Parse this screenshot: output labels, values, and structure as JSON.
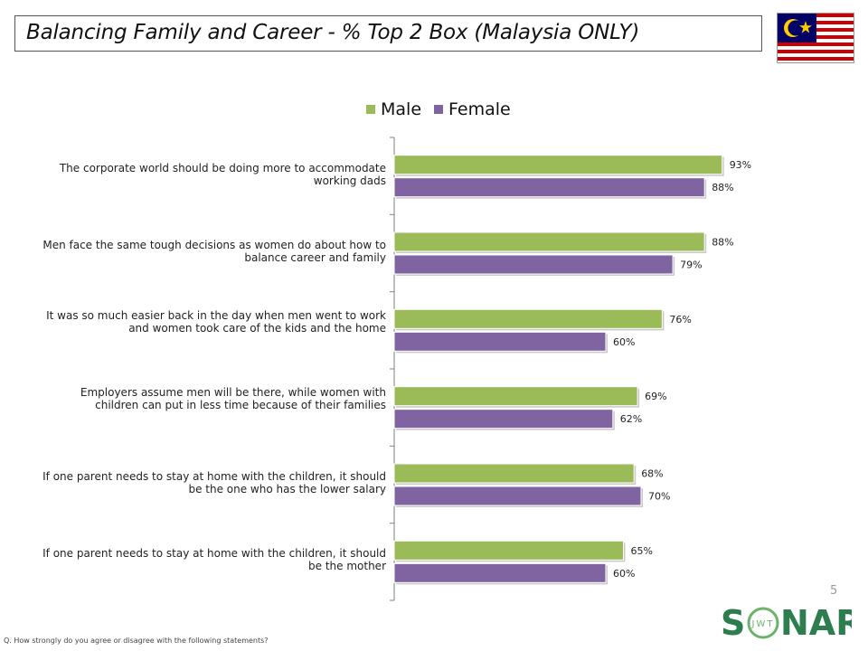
{
  "title": "Balancing Family and Career - % Top 2 Box (Malaysia ONLY)",
  "page_number": "5",
  "footnote": "Q. How strongly do you agree or disagree with the following statements?",
  "logo": {
    "text_left": "S",
    "text_right": "NAR",
    "ring_text": "JWT"
  },
  "colors": {
    "male": "#9BBB59",
    "female": "#8064A2",
    "axis": "#7f7f7f",
    "logo_green": "#2e7d4f",
    "logo_ring": "#6bb36b"
  },
  "chart_data": {
    "type": "bar",
    "orientation": "horizontal",
    "categories": [
      "The corporate world should be doing more to accommodate working dads",
      "Men face the same tough decisions as women do about how to balance career and family",
      "It was so much easier back in the day when men went to work and women took care of the kids and the home",
      "Employers assume men will be there, while women with children can put in less time because of their families",
      "If one parent needs to stay at home with the children, it should be the one who has the lower salary",
      "If one parent needs to stay at home with the children, it should be the mother"
    ],
    "series": [
      {
        "name": "Male",
        "values": [
          93,
          88,
          76,
          69,
          68,
          65
        ]
      },
      {
        "name": "Female",
        "values": [
          88,
          79,
          60,
          62,
          70,
          60
        ]
      }
    ],
    "value_labels": {
      "Male": [
        "93%",
        "88%",
        "76%",
        "69%",
        "68%",
        "65%"
      ],
      "Female": [
        "88%",
        "79%",
        "60%",
        "62%",
        "70%",
        "60%"
      ]
    },
    "xlim": [
      0,
      100
    ],
    "legend_position": "top",
    "grid": false
  }
}
